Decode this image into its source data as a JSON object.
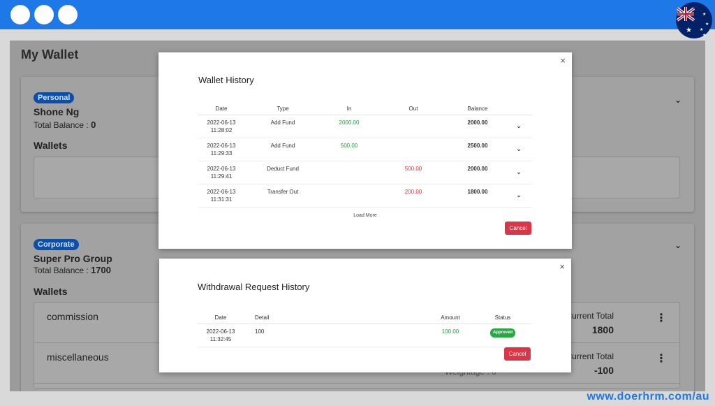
{
  "app": {
    "title": "My Wallet"
  },
  "cards": [
    {
      "badge": "Personal",
      "name": "Shone Ng",
      "total_label": "Total Balance :",
      "total_value": "0",
      "wallets_label": "Wallets"
    },
    {
      "badge": "Corporate",
      "name": "Super Pro Group",
      "total_label": "Total Balance :",
      "total_value": "1700",
      "wallets_label": "Wallets",
      "wallets": [
        {
          "name": "commission",
          "current_total_label": "Current Total",
          "current_total": "1800"
        },
        {
          "name": "miscellaneous",
          "current_total_label": "Current Total",
          "current_total": "-100"
        }
      ],
      "weightage": "Weightage : 0"
    }
  ],
  "wallet_history": {
    "title": "Wallet History",
    "columns": [
      "Date",
      "Type",
      "In",
      "Out",
      "Balance"
    ],
    "rows": [
      {
        "date": "2022-06-13",
        "time": "11:28:02",
        "type": "Add Fund",
        "in": "2000.00",
        "out": "",
        "balance": "2000.00"
      },
      {
        "date": "2022-06-13",
        "time": "11:29:33",
        "type": "Add Fund",
        "in": "500.00",
        "out": "",
        "balance": "2500.00"
      },
      {
        "date": "2022-06-13",
        "time": "11:29:41",
        "type": "Deduct Fund",
        "in": "",
        "out": "500.00",
        "balance": "2000.00"
      },
      {
        "date": "2022-06-13",
        "time": "11:31:31",
        "type": "Transfer Out",
        "in": "",
        "out": "200.00",
        "balance": "1800.00"
      }
    ],
    "load_more": "Load More",
    "cancel": "Cancel",
    "close": "×"
  },
  "withdrawal_history": {
    "title": "Withdrawal Request History",
    "columns": [
      "Date",
      "Detail",
      "Amount",
      "Status"
    ],
    "rows": [
      {
        "date": "2022-06-13",
        "time": "11:32:45",
        "detail": "100",
        "amount": "100.00",
        "status": "Approved"
      }
    ],
    "cancel": "Cancel",
    "close": "×"
  },
  "footer": {
    "url": "www.doerhrm.com/au"
  },
  "colors": {
    "brand_blue": "#1f78e8",
    "in_green": "#1e9e3a",
    "out_red": "#d9363e",
    "cancel_red": "#dc3545"
  }
}
